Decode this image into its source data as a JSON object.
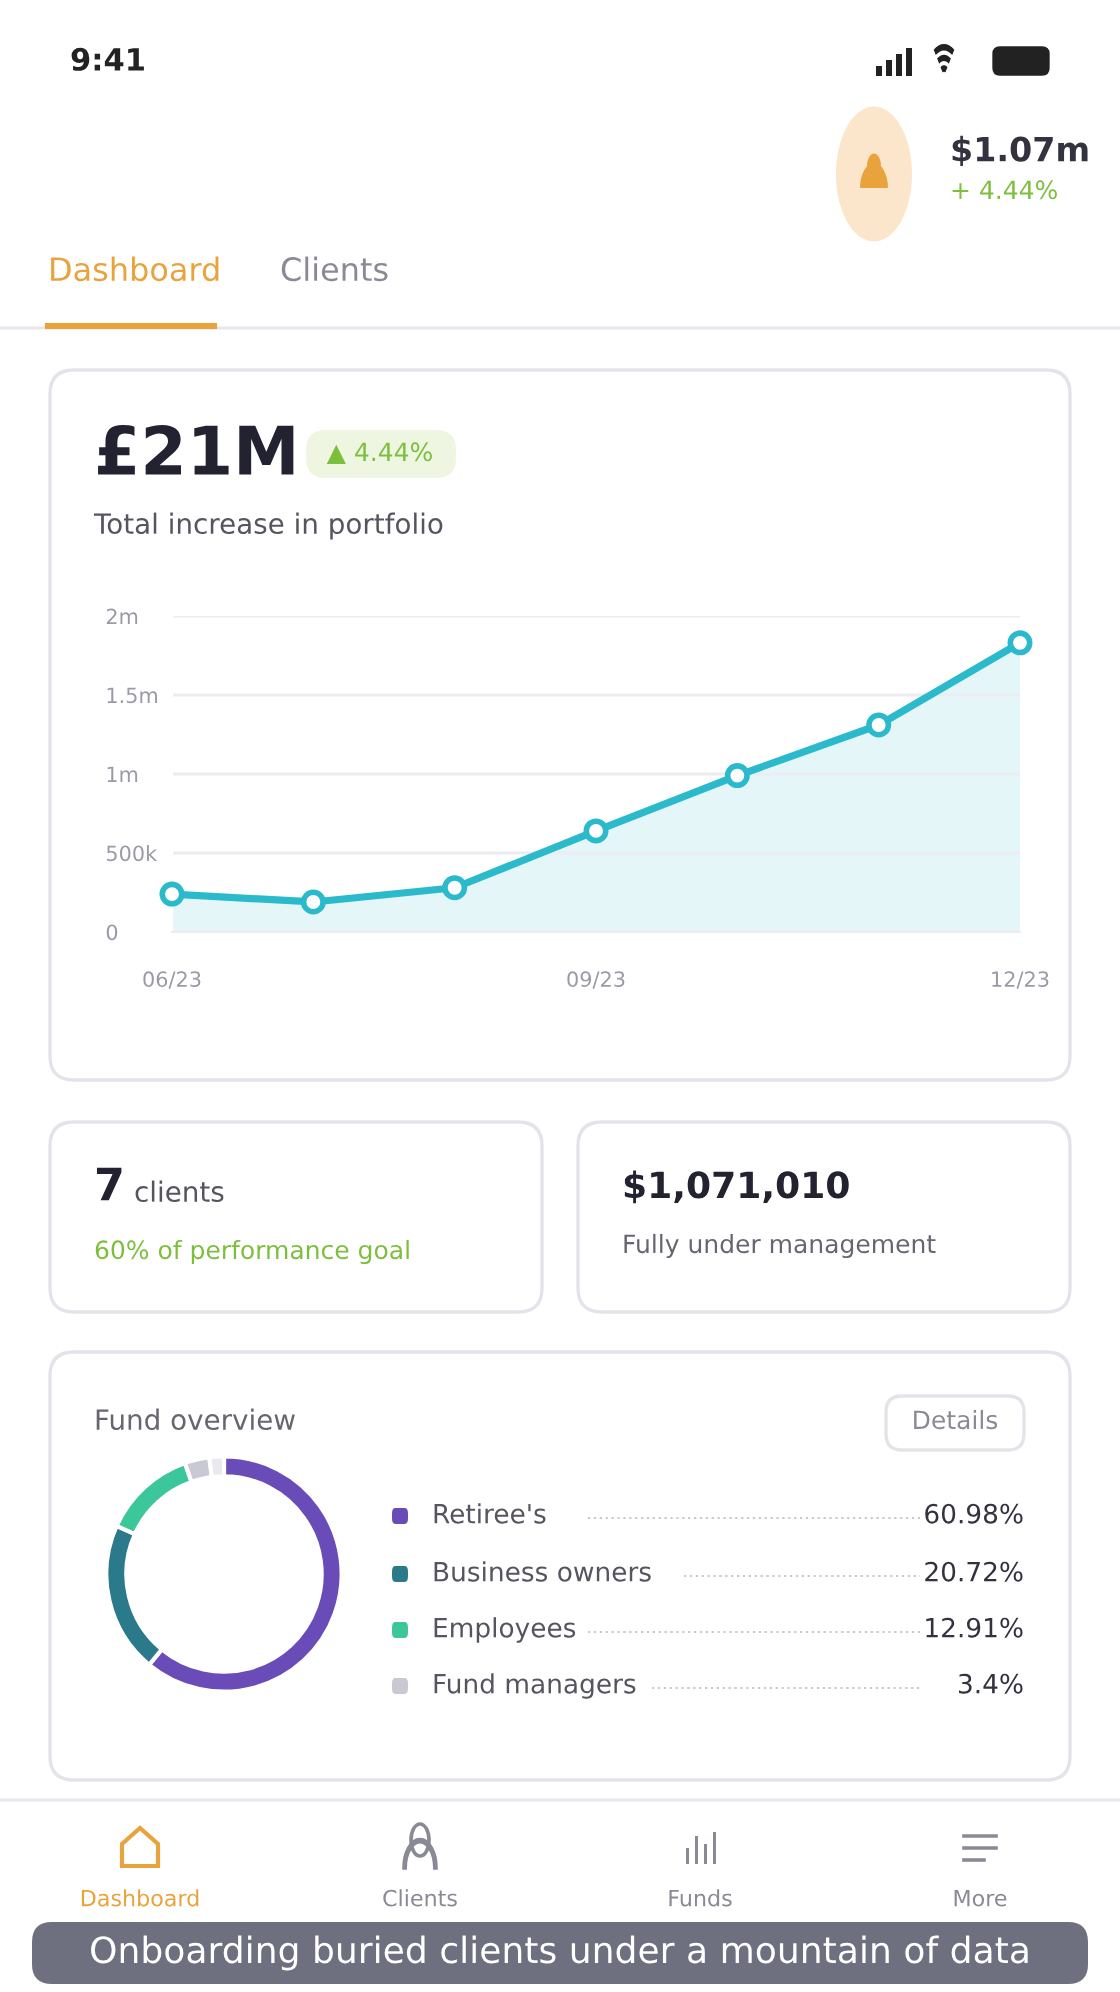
{
  "chart_data": [
    {
      "type": "other",
      "annotations": [
        "9:41",
        "$1.07m",
        "+ 4.44%",
        "Dashboard",
        "Clients"
      ]
    },
    {
      "type": "area",
      "title": "£21M",
      "subtitle": "Total increase in portfolio",
      "annotations": [
        "▲ 4.44%"
      ],
      "categories": [
        "06/23",
        null,
        null,
        "09/23",
        null,
        null,
        "12/23"
      ],
      "values": [
        240000,
        190000,
        280000,
        640000,
        990000,
        1310000,
        1830000
      ],
      "color": "#2bb9cc",
      "ylim": [
        0,
        2000000
      ],
      "yticks": [
        {
          "value": 0,
          "label": "0"
        },
        {
          "value": 500000,
          "label": "500k"
        },
        {
          "value": 1000000,
          "label": "1m"
        },
        {
          "value": 1500000,
          "label": "1.5m"
        },
        {
          "value": 2000000,
          "label": "2m"
        }
      ],
      "grid": "y",
      "marker": "circle",
      "line_style": "solid"
    },
    {
      "type": "other",
      "annotations": [
        "7",
        "clients",
        "60% of performance goal"
      ]
    },
    {
      "type": "other",
      "annotations": [
        "$1,071,010",
        "Fully under management"
      ]
    },
    {
      "type": "donut",
      "title": "Fund overview",
      "annotations": [
        "Details"
      ],
      "categories": [
        "Retiree's",
        "Business owners",
        "Employees",
        "Fund managers",
        null
      ],
      "values": [
        60.98,
        20.72,
        12.91,
        3.4,
        1.99
      ],
      "value_labels": [
        "60.98%",
        "20.72%",
        "12.91%",
        "3.4%",
        null
      ],
      "colors": [
        "#6a4cb8",
        "#2a7a8c",
        "#3cc79a",
        "#c9c9d3",
        "#e9e9ef"
      ],
      "legend": "right"
    },
    {
      "type": "other",
      "annotations": [
        "Dashboard",
        "Clients",
        "Funds",
        "More",
        "Onboarding buried clients under a mountain of data"
      ]
    }
  ]
}
